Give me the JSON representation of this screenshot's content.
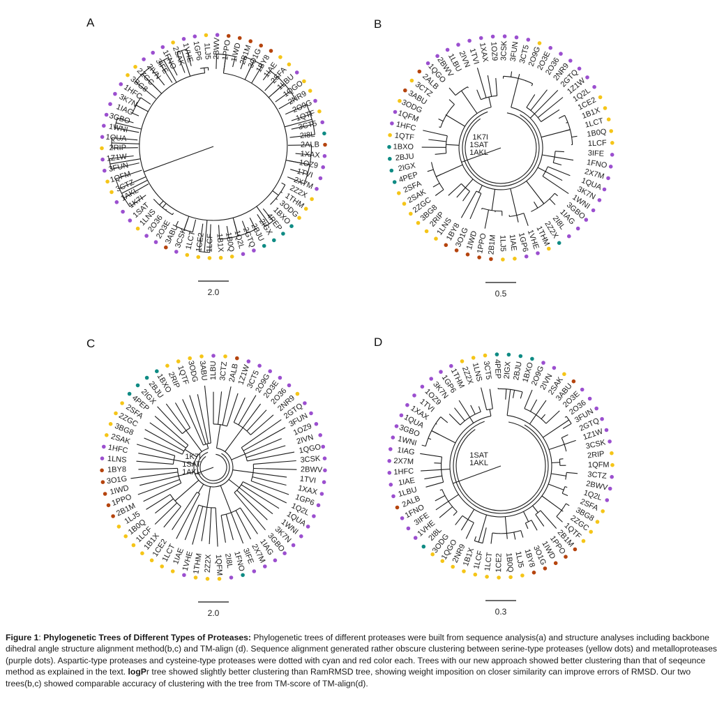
{
  "colors": {
    "S": "#f5c518",
    "M": "#9b4fcf",
    "C": "#b5440e",
    "A": "#0f8b84"
  },
  "panels": [
    {
      "letter": "A",
      "scale": "2.0",
      "leaves": [
        {
          "l": "2BWV",
          "t": "M"
        },
        {
          "l": "1PPO",
          "t": "C"
        },
        {
          "l": "1IWD",
          "t": "C"
        },
        {
          "l": "2B1M",
          "t": "C"
        },
        {
          "l": "3O1G",
          "t": "C"
        },
        {
          "l": "1BY8",
          "t": "C"
        },
        {
          "l": "1IAE",
          "t": "S"
        },
        {
          "l": "2SFA",
          "t": "S"
        },
        {
          "l": "1LBU",
          "t": "M"
        },
        {
          "l": "1QGO",
          "t": "S"
        },
        {
          "l": "2NR9",
          "t": "S"
        },
        {
          "l": "2O9G",
          "t": "M"
        },
        {
          "l": "1QTF",
          "t": "S"
        },
        {
          "l": "3CT5",
          "t": "M"
        },
        {
          "l": "2I8L",
          "t": "A"
        },
        {
          "l": "2ALB",
          "t": "C"
        },
        {
          "l": "1XAX",
          "t": "M"
        },
        {
          "l": "1OZ9",
          "t": "M"
        },
        {
          "l": "1TVI",
          "t": "M"
        },
        {
          "l": "2X7M",
          "t": "M"
        },
        {
          "l": "2Z2X",
          "t": "S"
        },
        {
          "l": "1THM",
          "t": "S"
        },
        {
          "l": "3ODG",
          "t": "S"
        },
        {
          "l": "1BXO",
          "t": "A"
        },
        {
          "l": "4PEP",
          "t": "A"
        },
        {
          "l": "2IGX",
          "t": "A"
        },
        {
          "l": "2BJU",
          "t": "A"
        },
        {
          "l": "2GTQ",
          "t": "M"
        },
        {
          "l": "1Q2L",
          "t": "M"
        },
        {
          "l": "1B0Q",
          "t": "S"
        },
        {
          "l": "1B1X",
          "t": "S"
        },
        {
          "l": "1LCF",
          "t": "S"
        },
        {
          "l": "1CE2",
          "t": "S"
        },
        {
          "l": "1LCT",
          "t": "S"
        },
        {
          "l": "3CSK",
          "t": "M"
        },
        {
          "l": "3ABU",
          "t": "C"
        },
        {
          "l": "2O3E",
          "t": "M"
        },
        {
          "l": "2O36",
          "t": "M"
        },
        {
          "l": "1LNS",
          "t": "S"
        },
        {
          "l": "1SAT",
          "t": "M"
        },
        {
          "l": "1K7I",
          "t": "M"
        },
        {
          "l": "1AKL",
          "t": "M"
        },
        {
          "l": "3CTZ",
          "t": "S"
        },
        {
          "l": "1QFM",
          "t": "S"
        },
        {
          "l": "3FUN",
          "t": "M"
        },
        {
          "l": "1Z1W",
          "t": "M"
        },
        {
          "l": "2RIP",
          "t": "S"
        },
        {
          "l": "1QUA",
          "t": "M"
        },
        {
          "l": "1WNI",
          "t": "M"
        },
        {
          "l": "3GBO",
          "t": "M"
        },
        {
          "l": "1IAG",
          "t": "M"
        },
        {
          "l": "3K7N",
          "t": "M"
        },
        {
          "l": "1HFC",
          "t": "M"
        },
        {
          "l": "3BG8",
          "t": "S"
        },
        {
          "l": "2ZGC",
          "t": "S"
        },
        {
          "l": "2IVN",
          "t": "M"
        },
        {
          "l": "3IFE",
          "t": "M"
        },
        {
          "l": "1FNO",
          "t": "M"
        },
        {
          "l": "2SAK",
          "t": "S"
        },
        {
          "l": "1VHE",
          "t": "M"
        },
        {
          "l": "1GP6",
          "t": "M"
        },
        {
          "l": "1LJ5",
          "t": "S"
        }
      ]
    },
    {
      "letter": "B",
      "scale": "0.5",
      "leaves": [
        {
          "l": "3CSK",
          "t": "M"
        },
        {
          "l": "3FUN",
          "t": "M"
        },
        {
          "l": "3CT5",
          "t": "M"
        },
        {
          "l": "2O9G",
          "t": "S"
        },
        {
          "l": "2O3E",
          "t": "M"
        },
        {
          "l": "2O36",
          "t": "M"
        },
        {
          "l": "2NR9",
          "t": "M"
        },
        {
          "l": "2GTQ",
          "t": "M"
        },
        {
          "l": "1Z1W",
          "t": "M"
        },
        {
          "l": "1Q2L",
          "t": "M"
        },
        {
          "l": "1CE2",
          "t": "S"
        },
        {
          "l": "1B1X",
          "t": "S"
        },
        {
          "l": "1LCT",
          "t": "S"
        },
        {
          "l": "1B0Q",
          "t": "S"
        },
        {
          "l": "1LCF",
          "t": "S"
        },
        {
          "l": "3IFE",
          "t": "M"
        },
        {
          "l": "1FNO",
          "t": "M"
        },
        {
          "l": "2X7M",
          "t": "M"
        },
        {
          "l": "1QUA",
          "t": "M"
        },
        {
          "l": "3K7N",
          "t": "M"
        },
        {
          "l": "1WNI",
          "t": "M"
        },
        {
          "l": "3GBO",
          "t": "M"
        },
        {
          "l": "1IAG",
          "t": "M"
        },
        {
          "l": "2I8L",
          "t": "M"
        },
        {
          "l": "2Z2X",
          "t": "A"
        },
        {
          "l": "1THM",
          "t": "S"
        },
        {
          "l": "1VHE",
          "t": "M"
        },
        {
          "l": "1GP6",
          "t": "M"
        },
        {
          "l": "1IAE",
          "t": "S"
        },
        {
          "l": "1LJ5",
          "t": "S"
        },
        {
          "l": "2B1M",
          "t": "C"
        },
        {
          "l": "1PPO",
          "t": "C"
        },
        {
          "l": "1IWD",
          "t": "C"
        },
        {
          "l": "3O1G",
          "t": "C"
        },
        {
          "l": "1BY8",
          "t": "C"
        },
        {
          "l": "1LNS",
          "t": "S"
        },
        {
          "l": "2RIP",
          "t": "S"
        },
        {
          "l": "3BG8",
          "t": "S"
        },
        {
          "l": "2ZGC",
          "t": "S"
        },
        {
          "l": "2SAK",
          "t": "S"
        },
        {
          "l": "2SFA",
          "t": "S"
        },
        {
          "l": "4PEP",
          "t": "A"
        },
        {
          "l": "2IGX",
          "t": "A"
        },
        {
          "l": "2BJU",
          "t": "A"
        },
        {
          "l": "1BXO",
          "t": "A"
        },
        {
          "l": "1QTF",
          "t": "S"
        },
        {
          "l": "1HFC",
          "t": "M"
        },
        {
          "l": "1QFM",
          "t": "M"
        },
        {
          "l": "3ODG",
          "t": "S"
        },
        {
          "l": "3ABU",
          "t": "C"
        },
        {
          "l": "3CTZ",
          "t": "S"
        },
        {
          "l": "2ALB",
          "t": "C"
        },
        {
          "l": "1QGO",
          "t": "M"
        },
        {
          "l": "2BWV",
          "t": "M"
        },
        {
          "l": "1LBU",
          "t": "M"
        },
        {
          "l": "2IVN",
          "t": "M"
        },
        {
          "l": "1TVI",
          "t": "M"
        },
        {
          "l": "1XAX",
          "t": "M"
        },
        {
          "l": "1OZ9",
          "t": "M"
        }
      ],
      "inner": [
        "1K7I",
        "1SAT",
        "1AKL"
      ]
    },
    {
      "letter": "C",
      "scale": "2.0",
      "leaves": [
        {
          "l": "1LBU",
          "t": "M"
        },
        {
          "l": "3CTZ",
          "t": "S"
        },
        {
          "l": "2ALB",
          "t": "C"
        },
        {
          "l": "1Z1W",
          "t": "M"
        },
        {
          "l": "3CT5",
          "t": "M"
        },
        {
          "l": "2O9G",
          "t": "M"
        },
        {
          "l": "2O3E",
          "t": "M"
        },
        {
          "l": "2O36",
          "t": "M"
        },
        {
          "l": "2NR9",
          "t": "S"
        },
        {
          "l": "2GTQ",
          "t": "M"
        },
        {
          "l": "3FUN",
          "t": "M"
        },
        {
          "l": "1OZ9",
          "t": "M"
        },
        {
          "l": "2IVN",
          "t": "M"
        },
        {
          "l": "1QGO",
          "t": "M"
        },
        {
          "l": "3CSK",
          "t": "M"
        },
        {
          "l": "2BWV",
          "t": "M"
        },
        {
          "l": "1TVI",
          "t": "M"
        },
        {
          "l": "1XAX",
          "t": "M"
        },
        {
          "l": "1GP6",
          "t": "M"
        },
        {
          "l": "1Q2L",
          "t": "M"
        },
        {
          "l": "1QUA",
          "t": "M"
        },
        {
          "l": "1WNI",
          "t": "M"
        },
        {
          "l": "3K7N",
          "t": "M"
        },
        {
          "l": "3GBO",
          "t": "M"
        },
        {
          "l": "1IAG",
          "t": "M"
        },
        {
          "l": "2X7M",
          "t": "M"
        },
        {
          "l": "3IFE",
          "t": "M"
        },
        {
          "l": "1FNO",
          "t": "A"
        },
        {
          "l": "2I8L",
          "t": "M"
        },
        {
          "l": "1QFM",
          "t": "S"
        },
        {
          "l": "2Z2X",
          "t": "S"
        },
        {
          "l": "1THM",
          "t": "S"
        },
        {
          "l": "1VHE",
          "t": "M"
        },
        {
          "l": "1IAE",
          "t": "S"
        },
        {
          "l": "1LCT",
          "t": "S"
        },
        {
          "l": "1CE2",
          "t": "S"
        },
        {
          "l": "1B1X",
          "t": "S"
        },
        {
          "l": "1LCF",
          "t": "S"
        },
        {
          "l": "1B0Q",
          "t": "S"
        },
        {
          "l": "1LJ5",
          "t": "S"
        },
        {
          "l": "2B1M",
          "t": "C"
        },
        {
          "l": "1PPO",
          "t": "C"
        },
        {
          "l": "1IWD",
          "t": "C"
        },
        {
          "l": "3O1G",
          "t": "C"
        },
        {
          "l": "1BY8",
          "t": "C"
        },
        {
          "l": "1LNS",
          "t": "M"
        },
        {
          "l": "1HFC",
          "t": "M"
        },
        {
          "l": "2SAK",
          "t": "S"
        },
        {
          "l": "3BG8",
          "t": "S"
        },
        {
          "l": "2ZGC",
          "t": "S"
        },
        {
          "l": "2SFA",
          "t": "S"
        },
        {
          "l": "4PEP",
          "t": "A"
        },
        {
          "l": "2IGX",
          "t": "A"
        },
        {
          "l": "2BJU",
          "t": "A"
        },
        {
          "l": "1BXO",
          "t": "A"
        },
        {
          "l": "2RIP",
          "t": "S"
        },
        {
          "l": "1QTF",
          "t": "S"
        },
        {
          "l": "3ODG",
          "t": "S"
        },
        {
          "l": "3ABU",
          "t": "S"
        }
      ],
      "inner": [
        "1K7I",
        "1SAT",
        "1AKL"
      ]
    },
    {
      "letter": "D",
      "scale": "0.3",
      "leaves": [
        {
          "l": "4PEP",
          "t": "A"
        },
        {
          "l": "2IGX",
          "t": "A"
        },
        {
          "l": "2BJU",
          "t": "A"
        },
        {
          "l": "1BXO",
          "t": "A"
        },
        {
          "l": "2O9G",
          "t": "M"
        },
        {
          "l": "2IVN",
          "t": "M"
        },
        {
          "l": "2SAK",
          "t": "S"
        },
        {
          "l": "3ABU",
          "t": "C"
        },
        {
          "l": "2O3E",
          "t": "M"
        },
        {
          "l": "2O36",
          "t": "M"
        },
        {
          "l": "3FUN",
          "t": "M"
        },
        {
          "l": "2GTQ",
          "t": "M"
        },
        {
          "l": "1Z1W",
          "t": "M"
        },
        {
          "l": "3CSK",
          "t": "M"
        },
        {
          "l": "2RIP",
          "t": "S"
        },
        {
          "l": "1QFM",
          "t": "S"
        },
        {
          "l": "3CTZ",
          "t": "M"
        },
        {
          "l": "2BWV",
          "t": "M"
        },
        {
          "l": "1Q2L",
          "t": "M"
        },
        {
          "l": "2SFA",
          "t": "S"
        },
        {
          "l": "3BG8",
          "t": "S"
        },
        {
          "l": "2ZGC",
          "t": "S"
        },
        {
          "l": "1QTF",
          "t": "S"
        },
        {
          "l": "2B1M",
          "t": "C"
        },
        {
          "l": "1PPO",
          "t": "C"
        },
        {
          "l": "1IWD",
          "t": "C"
        },
        {
          "l": "3O1G",
          "t": "C"
        },
        {
          "l": "1BY8",
          "t": "C"
        },
        {
          "l": "1LJ5",
          "t": "S"
        },
        {
          "l": "1B0Q",
          "t": "S"
        },
        {
          "l": "1CE2",
          "t": "S"
        },
        {
          "l": "1LCT",
          "t": "S"
        },
        {
          "l": "1LCF",
          "t": "S"
        },
        {
          "l": "1B1X",
          "t": "S"
        },
        {
          "l": "2NR9",
          "t": "S"
        },
        {
          "l": "1QGO",
          "t": "S"
        },
        {
          "l": "3ODG",
          "t": "S"
        },
        {
          "l": "2I8L",
          "t": "A"
        },
        {
          "l": "1VHE",
          "t": "M"
        },
        {
          "l": "3IFE",
          "t": "M"
        },
        {
          "l": "1FNO",
          "t": "M"
        },
        {
          "l": "2ALB",
          "t": "C"
        },
        {
          "l": "1LBU",
          "t": "M"
        },
        {
          "l": "1IAE",
          "t": "M"
        },
        {
          "l": "1HFC",
          "t": "M"
        },
        {
          "l": "2X7M",
          "t": "M"
        },
        {
          "l": "1IAG",
          "t": "M"
        },
        {
          "l": "1WNI",
          "t": "M"
        },
        {
          "l": "3GBO",
          "t": "M"
        },
        {
          "l": "1QUA",
          "t": "M"
        },
        {
          "l": "1XAX",
          "t": "M"
        },
        {
          "l": "1TVI",
          "t": "M"
        },
        {
          "l": "1OZ9",
          "t": "M"
        },
        {
          "l": "3K7N",
          "t": "M"
        },
        {
          "l": "1GP6",
          "t": "M"
        },
        {
          "l": "1THM",
          "t": "M"
        },
        {
          "l": "2Z2X",
          "t": "S"
        },
        {
          "l": "1LNS",
          "t": "S"
        },
        {
          "l": "3CT5",
          "t": "S"
        }
      ],
      "inner": [
        "1SAT",
        "1AKL"
      ]
    }
  ],
  "caption": {
    "label": "Figure 1",
    "title": "Phylogenetic Trees of Different Types of Proteases:",
    "part1": " Phylogenetic trees of different proteases were built from sequence analysis(a) and structure analyses including backbone dihedral angle structure alignment method(b,c) and TM-align (d). Sequence alignment generated rather obscure clustering between serine-type proteases (yellow dots) and metalloproteases (purple dots). Aspartic-type proteases and cysteine-type proteases were dotted with cyan and red color each. Trees with our new approach showed better clustering than that of seqeunce method as explained in the text. ",
    "bold2": "logP",
    "part2": "r tree showed slightly better clustering than RamRMSD tree, showing weight imposition on closer similarity can improve errors of RMSD. Our two trees(b,c) showed comparable accuracy of clustering with the tree from TM-score of TM-align(d)."
  }
}
